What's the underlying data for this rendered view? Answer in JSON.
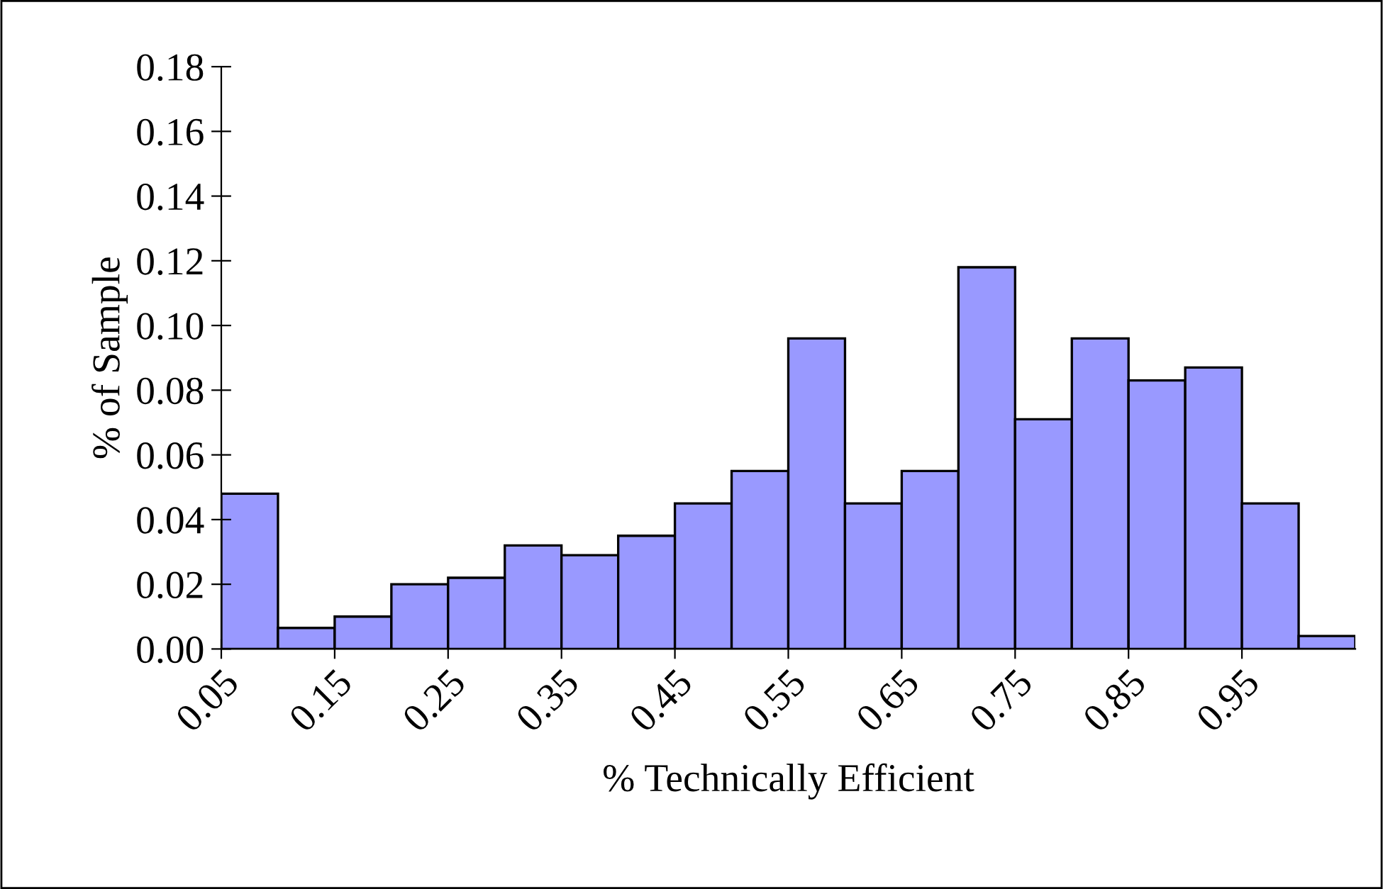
{
  "chart_data": {
    "type": "histogram",
    "xlabel": "% Technically Efficient",
    "ylabel": "% of Sample",
    "bins": [
      0.05,
      0.1,
      0.15,
      0.2,
      0.25,
      0.3,
      0.35,
      0.4,
      0.45,
      0.5,
      0.55,
      0.6,
      0.65,
      0.7,
      0.75,
      0.8,
      0.85,
      0.9,
      0.95,
      1.0,
      1.05
    ],
    "values": [
      0.048,
      0.0065,
      0.01,
      0.02,
      0.022,
      0.032,
      0.029,
      0.035,
      0.045,
      0.055,
      0.096,
      0.045,
      0.055,
      0.118,
      0.071,
      0.096,
      0.083,
      0.087,
      0.045,
      0.004
    ],
    "color": "#9999ff",
    "xlim": [
      0.05,
      1.05
    ],
    "xticks": [
      0.05,
      0.15,
      0.25,
      0.35,
      0.45,
      0.55,
      0.65,
      0.75,
      0.85,
      0.95
    ],
    "ylim": [
      0,
      0.18
    ],
    "yticks": [
      {
        "value": 0,
        "label": "0.00"
      },
      {
        "value": 0.02,
        "label": "0.02"
      },
      {
        "value": 0.04,
        "label": "0.04"
      },
      {
        "value": 0.06,
        "label": "0.06"
      },
      {
        "value": 0.08,
        "label": "0.08"
      },
      {
        "value": 0.1,
        "label": "0.10"
      },
      {
        "value": 0.12,
        "label": "0.12"
      },
      {
        "value": 0.14,
        "label": "0.14"
      },
      {
        "value": 0.16,
        "label": "0.16"
      },
      {
        "value": 0.18,
        "label": "0.18"
      }
    ],
    "grid": false,
    "legend": false
  }
}
